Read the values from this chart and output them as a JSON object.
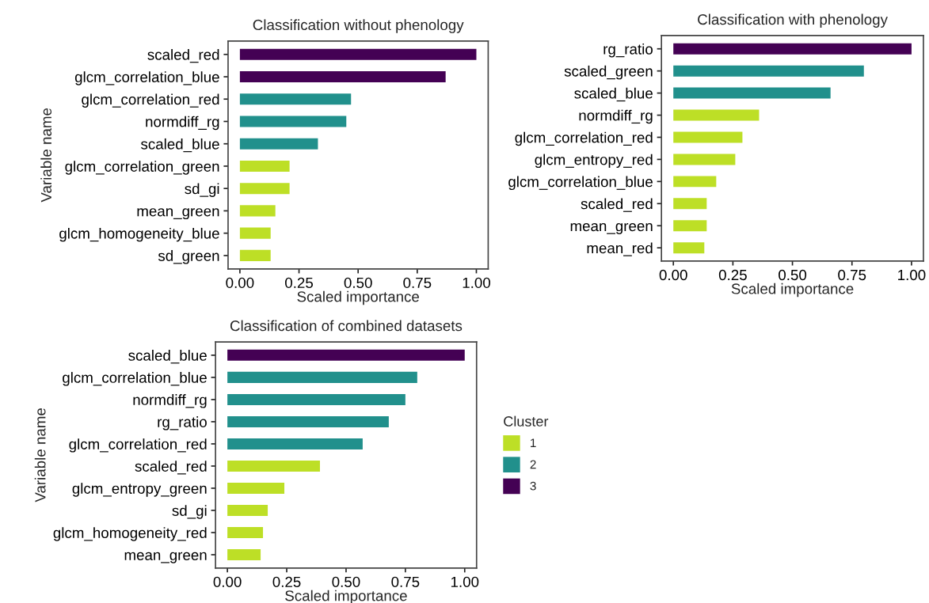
{
  "chart_data": [
    {
      "type": "bar",
      "orientation": "horizontal",
      "title": "Classification without phenology",
      "xlabel": "Scaled importance",
      "ylabel": "Variable name",
      "categories": [
        "scaled_red",
        "glcm_correlation_blue",
        "glcm_correlation_red",
        "normdiff_rg",
        "scaled_blue",
        "glcm_correlation_green",
        "sd_gi",
        "mean_green",
        "glcm_homogeneity_blue",
        "sd_green"
      ],
      "values": [
        1.0,
        0.87,
        0.47,
        0.45,
        0.33,
        0.21,
        0.21,
        0.15,
        0.13,
        0.13
      ],
      "colors": [
        "#440154",
        "#440154",
        "#21908c",
        "#21908c",
        "#21908c",
        "#bddf26",
        "#bddf26",
        "#bddf26",
        "#bddf26",
        "#bddf26"
      ],
      "xlim": [
        -0.05,
        1.05
      ],
      "xticks": [
        {
          "value": 0,
          "label": "0.00"
        },
        {
          "value": 0.25,
          "label": "0.25"
        },
        {
          "value": 0.5,
          "label": "0.50"
        },
        {
          "value": 0.75,
          "label": "0.75"
        },
        {
          "value": 1,
          "label": "1.00"
        }
      ],
      "grid": false,
      "legend": false
    },
    {
      "type": "bar",
      "orientation": "horizontal",
      "title": "Classification with phenology",
      "xlabel": "Scaled importance",
      "categories": [
        "rg_ratio",
        "scaled_green",
        "scaled_blue",
        "normdiff_rg",
        "glcm_correlation_red",
        "glcm_entropy_red",
        "glcm_correlation_blue",
        "scaled_red",
        "mean_green",
        "mean_red"
      ],
      "values": [
        1.0,
        0.8,
        0.66,
        0.36,
        0.29,
        0.26,
        0.18,
        0.14,
        0.14,
        0.13
      ],
      "colors": [
        "#440154",
        "#21908c",
        "#21908c",
        "#bddf26",
        "#bddf26",
        "#bddf26",
        "#bddf26",
        "#bddf26",
        "#bddf26",
        "#bddf26"
      ],
      "xlim": [
        -0.05,
        1.05
      ],
      "xticks": [
        {
          "value": 0,
          "label": "0.00"
        },
        {
          "value": 0.25,
          "label": "0.25"
        },
        {
          "value": 0.5,
          "label": "0.50"
        },
        {
          "value": 0.75,
          "label": "0.75"
        },
        {
          "value": 1,
          "label": "1.00"
        }
      ],
      "grid": false,
      "legend": false
    },
    {
      "type": "bar",
      "orientation": "horizontal",
      "title": "Classification of combined datasets",
      "xlabel": "Scaled importance",
      "ylabel": "Variable name",
      "legend_title": "Cluster",
      "categories": [
        "scaled_blue",
        "glcm_correlation_blue",
        "normdiff_rg",
        "rg_ratio",
        "glcm_correlation_red",
        "scaled_red",
        "glcm_entropy_green",
        "sd_gi",
        "glcm_homogeneity_red",
        "mean_green"
      ],
      "series": [
        {
          "name": "1",
          "color": "#bddf26",
          "values": [
            null,
            null,
            null,
            null,
            null,
            0.39,
            0.24,
            0.17,
            0.15,
            0.14
          ]
        },
        {
          "name": "2",
          "color": "#21908c",
          "values": [
            null,
            0.8,
            0.75,
            0.68,
            0.57,
            null,
            null,
            null,
            null,
            null
          ]
        },
        {
          "name": "3",
          "color": "#440154",
          "values": [
            1.0,
            null,
            null,
            null,
            null,
            null,
            null,
            null,
            null,
            null
          ]
        }
      ],
      "xlim": [
        -0.05,
        1.05
      ],
      "xticks": [
        {
          "value": 0,
          "label": "0.00"
        },
        {
          "value": 0.25,
          "label": "0.25"
        },
        {
          "value": 0.5,
          "label": "0.50"
        },
        {
          "value": 0.75,
          "label": "0.75"
        },
        {
          "value": 1,
          "label": "1.00"
        }
      ],
      "grid": false,
      "legend": "right"
    }
  ]
}
